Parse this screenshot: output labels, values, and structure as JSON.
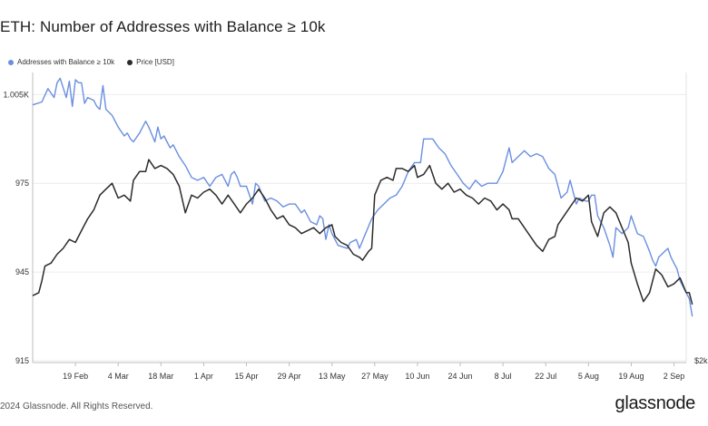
{
  "title": "ETH: Number of Addresses with Balance ≥ 10k",
  "legend": {
    "series1": "Addresses with Balance ≥ 10k",
    "series2": "Price [USD]"
  },
  "colors": {
    "series1": "#6a8fe0",
    "series2": "#2b2b2b"
  },
  "footer": "2024 Glassnode. All Rights Reserved.",
  "brand": "glassnode",
  "chart_data": {
    "type": "line",
    "title": "ETH: Number of Addresses with Balance ≥ 10k",
    "y_ticks": [
      "1.005K",
      "975",
      "945",
      "915"
    ],
    "y_tick_values": [
      1005,
      975,
      945,
      915
    ],
    "ylim": [
      915,
      1010
    ],
    "right_axis_label": "$2k",
    "x_ticks": [
      "19 Feb",
      "4 Mar",
      "18 Mar",
      "1 Apr",
      "15 Apr",
      "29 Apr",
      "13 May",
      "27 May",
      "10 Jun",
      "24 Jun",
      "8 Jul",
      "22 Jul",
      "5 Aug",
      "19 Aug",
      "2 Sep"
    ],
    "x_tick_days": [
      14,
      28,
      42,
      56,
      70,
      84,
      98,
      112,
      126,
      140,
      154,
      168,
      182,
      196,
      210
    ],
    "x_range_days": [
      0,
      214
    ],
    "grid": true,
    "legend_position": "top-left",
    "series": [
      {
        "name": "Addresses with Balance ≥ 10k",
        "color": "#6a8fe0",
        "points": [
          [
            0,
            1001.5
          ],
          [
            3,
            1002.5
          ],
          [
            5,
            1007
          ],
          [
            7,
            1004
          ],
          [
            8,
            1009
          ],
          [
            9,
            1010.5
          ],
          [
            11,
            1004
          ],
          [
            12,
            1009.5
          ],
          [
            13,
            1001
          ],
          [
            14,
            1010
          ],
          [
            15,
            1009
          ],
          [
            16,
            1009
          ],
          [
            17,
            1002
          ],
          [
            18,
            1004
          ],
          [
            20,
            1003
          ],
          [
            21,
            1001
          ],
          [
            22,
            1000
          ],
          [
            23,
            1008
          ],
          [
            24,
            1000
          ],
          [
            26,
            998
          ],
          [
            28,
            994
          ],
          [
            30,
            991
          ],
          [
            31,
            992
          ],
          [
            32,
            990
          ],
          [
            33,
            989
          ],
          [
            35,
            992
          ],
          [
            37,
            996
          ],
          [
            38,
            994
          ],
          [
            40,
            989
          ],
          [
            41,
            994
          ],
          [
            42,
            990
          ],
          [
            43,
            991
          ],
          [
            45,
            987
          ],
          [
            46,
            988
          ],
          [
            48,
            984
          ],
          [
            50,
            981
          ],
          [
            52,
            977
          ],
          [
            54,
            976
          ],
          [
            56,
            977
          ],
          [
            58,
            974
          ],
          [
            60,
            977
          ],
          [
            62,
            978
          ],
          [
            64,
            974
          ],
          [
            65,
            978
          ],
          [
            66,
            979
          ],
          [
            67,
            977
          ],
          [
            68,
            974
          ],
          [
            70,
            974
          ],
          [
            72,
            968
          ],
          [
            73,
            975
          ],
          [
            74,
            974
          ],
          [
            76,
            969
          ],
          [
            78,
            970
          ],
          [
            80,
            969
          ],
          [
            82,
            967
          ],
          [
            84,
            968
          ],
          [
            86,
            968
          ],
          [
            88,
            965
          ],
          [
            89,
            966
          ],
          [
            91,
            962
          ],
          [
            93,
            961
          ],
          [
            94,
            964
          ],
          [
            95,
            963
          ],
          [
            96,
            956
          ],
          [
            97,
            961
          ],
          [
            98,
            958
          ],
          [
            100,
            954
          ],
          [
            103,
            953
          ],
          [
            104,
            955
          ],
          [
            106,
            956
          ],
          [
            107,
            953
          ],
          [
            109,
            958
          ],
          [
            111,
            963
          ],
          [
            113,
            966
          ],
          [
            115,
            968
          ],
          [
            117,
            970
          ],
          [
            119,
            971
          ],
          [
            121,
            974
          ],
          [
            123,
            979
          ],
          [
            125,
            982
          ],
          [
            127,
            982
          ],
          [
            128,
            990
          ],
          [
            131,
            990
          ],
          [
            133,
            987
          ],
          [
            135,
            985
          ],
          [
            137,
            981
          ],
          [
            139,
            978
          ],
          [
            141,
            975
          ],
          [
            143,
            973
          ],
          [
            145,
            976
          ],
          [
            147,
            974
          ],
          [
            149,
            975
          ],
          [
            150,
            975
          ],
          [
            152,
            975
          ],
          [
            154,
            979
          ],
          [
            156,
            987
          ],
          [
            157,
            982
          ],
          [
            159,
            984
          ],
          [
            161,
            986
          ],
          [
            163,
            984
          ],
          [
            165,
            985
          ],
          [
            167,
            984
          ],
          [
            169,
            980
          ],
          [
            171,
            978
          ],
          [
            173,
            970
          ],
          [
            175,
            972
          ],
          [
            176,
            976
          ],
          [
            178,
            968
          ],
          [
            179,
            970
          ],
          [
            181,
            969
          ],
          [
            182,
            969
          ],
          [
            183,
            971
          ],
          [
            184,
            971
          ],
          [
            185,
            964
          ],
          [
            187,
            960
          ],
          [
            189,
            954
          ],
          [
            190,
            950
          ],
          [
            191,
            960
          ],
          [
            193,
            958
          ],
          [
            195,
            960
          ],
          [
            196,
            964
          ],
          [
            198,
            958
          ],
          [
            200,
            957
          ],
          [
            202,
            952
          ],
          [
            203,
            949
          ],
          [
            204,
            947
          ],
          [
            205,
            950
          ],
          [
            207,
            952
          ],
          [
            208,
            953
          ],
          [
            209,
            950
          ],
          [
            210,
            948
          ],
          [
            211,
            946
          ],
          [
            212,
            942
          ],
          [
            213,
            940
          ],
          [
            214,
            938
          ],
          [
            215,
            936
          ],
          [
            216,
            930
          ]
        ]
      },
      {
        "name": "Price [USD]",
        "color": "#2b2b2b",
        "points": [
          [
            0,
            937
          ],
          [
            2,
            938
          ],
          [
            3,
            942
          ],
          [
            4,
            947
          ],
          [
            6,
            948
          ],
          [
            8,
            951
          ],
          [
            10,
            953
          ],
          [
            12,
            956
          ],
          [
            14,
            955
          ],
          [
            16,
            959
          ],
          [
            18,
            963
          ],
          [
            20,
            966
          ],
          [
            22,
            971
          ],
          [
            24,
            973
          ],
          [
            26,
            975
          ],
          [
            28,
            970
          ],
          [
            30,
            971
          ],
          [
            32,
            969
          ],
          [
            33,
            976
          ],
          [
            35,
            979
          ],
          [
            37,
            979
          ],
          [
            38,
            983
          ],
          [
            40,
            980
          ],
          [
            42,
            981
          ],
          [
            44,
            980
          ],
          [
            46,
            978
          ],
          [
            48,
            974
          ],
          [
            50,
            965
          ],
          [
            52,
            971
          ],
          [
            54,
            970
          ],
          [
            56,
            972
          ],
          [
            58,
            973
          ],
          [
            60,
            971
          ],
          [
            62,
            968
          ],
          [
            64,
            971
          ],
          [
            66,
            968
          ],
          [
            68,
            965
          ],
          [
            70,
            968
          ],
          [
            72,
            970
          ],
          [
            74,
            973
          ],
          [
            76,
            970
          ],
          [
            78,
            966
          ],
          [
            80,
            963
          ],
          [
            82,
            964
          ],
          [
            84,
            961
          ],
          [
            86,
            960
          ],
          [
            88,
            958
          ],
          [
            90,
            959
          ],
          [
            92,
            960
          ],
          [
            94,
            958
          ],
          [
            96,
            960
          ],
          [
            98,
            961
          ],
          [
            99,
            957
          ],
          [
            101,
            955
          ],
          [
            103,
            954
          ],
          [
            105,
            951
          ],
          [
            107,
            950
          ],
          [
            108,
            949
          ],
          [
            110,
            952
          ],
          [
            111,
            953
          ],
          [
            112,
            971
          ],
          [
            114,
            976
          ],
          [
            116,
            977
          ],
          [
            118,
            976
          ],
          [
            119,
            980
          ],
          [
            121,
            980
          ],
          [
            123,
            979
          ],
          [
            125,
            981
          ],
          [
            126,
            977
          ],
          [
            128,
            978
          ],
          [
            130,
            981
          ],
          [
            132,
            975
          ],
          [
            134,
            973
          ],
          [
            136,
            975
          ],
          [
            138,
            972
          ],
          [
            140,
            973
          ],
          [
            142,
            971
          ],
          [
            144,
            970
          ],
          [
            146,
            968
          ],
          [
            148,
            970
          ],
          [
            150,
            969
          ],
          [
            152,
            966
          ],
          [
            154,
            968
          ],
          [
            156,
            966
          ],
          [
            157,
            963
          ],
          [
            159,
            963
          ],
          [
            161,
            960
          ],
          [
            163,
            957
          ],
          [
            165,
            954
          ],
          [
            167,
            952
          ],
          [
            169,
            956
          ],
          [
            171,
            957
          ],
          [
            172,
            961
          ],
          [
            174,
            964
          ],
          [
            176,
            967
          ],
          [
            178,
            970
          ],
          [
            180,
            969
          ],
          [
            182,
            971
          ],
          [
            183,
            962
          ],
          [
            185,
            957
          ],
          [
            187,
            965
          ],
          [
            189,
            967
          ],
          [
            191,
            965
          ],
          [
            193,
            960
          ],
          [
            195,
            955
          ],
          [
            196,
            948
          ],
          [
            198,
            941
          ],
          [
            200,
            935
          ],
          [
            202,
            938
          ],
          [
            204,
            946
          ],
          [
            206,
            944
          ],
          [
            208,
            940
          ],
          [
            210,
            941
          ],
          [
            212,
            943
          ],
          [
            214,
            938
          ],
          [
            215,
            938
          ],
          [
            216,
            934
          ]
        ]
      }
    ]
  }
}
